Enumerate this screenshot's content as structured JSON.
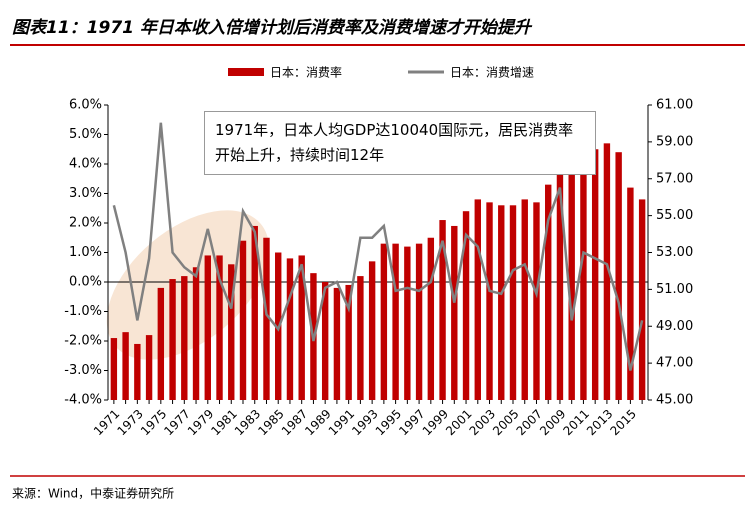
{
  "chart_data": {
    "type": "bar_line",
    "title": "图表11：1971 年日本收入倍增计划后消费率及消费增速才开始提升",
    "source": "来源：Wind，中泰证券研究所",
    "annotation": "1971年，日本人均GDP达10040国际元，居民消费率开始上升，持续时间12年",
    "categories": [
      "1971",
      null,
      "1973",
      null,
      "1975",
      null,
      "1977",
      null,
      "1979",
      null,
      "1981",
      null,
      "1983",
      null,
      "1985",
      null,
      "1987",
      null,
      "1989",
      null,
      "1991",
      null,
      "1993",
      null,
      "1995",
      null,
      "1997",
      null,
      "1999",
      null,
      "2001",
      null,
      "2003",
      null,
      "2005",
      null,
      "2007",
      null,
      "2009",
      null,
      "2011",
      null,
      "2013",
      null,
      "2015",
      null
    ],
    "series": [
      {
        "name": "日本：消费率",
        "color": "#c00000",
        "kind": "bar",
        "axis": "y2",
        "values": [
          48.36,
          48.68,
          48.04,
          48.52,
          51.08,
          51.56,
          51.72,
          52.2,
          52.84,
          52.84,
          52.36,
          53.64,
          54.44,
          53.8,
          53.0,
          52.68,
          52.84,
          51.88,
          51.4,
          51.08,
          51.24,
          51.72,
          52.52,
          53.48,
          53.48,
          53.32,
          53.48,
          53.8,
          54.76,
          54.44,
          55.24,
          55.88,
          55.72,
          55.56,
          55.56,
          55.88,
          55.72,
          56.68,
          58.44,
          57.8,
          58.28,
          58.6,
          58.92,
          58.44,
          56.52,
          55.88
        ]
      },
      {
        "name": "日本：消费增速",
        "color": "#808080",
        "kind": "line",
        "values": [
          2.6,
          1.0,
          -1.3,
          0.8,
          5.4,
          1.0,
          0.5,
          0.2,
          1.8,
          0.1,
          -0.9,
          2.4,
          1.7,
          -1.1,
          -1.6,
          -0.5,
          0.6,
          -2.0,
          -0.2,
          0.0,
          -0.9,
          1.5,
          1.5,
          1.9,
          -0.3,
          -0.2,
          -0.3,
          0.0,
          1.4,
          -0.7,
          1.6,
          1.2,
          -0.3,
          -0.4,
          0.4,
          0.6,
          -0.4,
          2.1,
          3.2,
          -1.3,
          1.0,
          0.8,
          0.6,
          -0.7,
          -3.0,
          -1.3
        ]
      }
    ],
    "ylim": [
      -4,
      6
    ],
    "yticks": [
      {
        "value": -4,
        "label": "-4.0%"
      },
      {
        "value": -3,
        "label": "-3.0%"
      },
      {
        "value": -2,
        "label": "-2.0%"
      },
      {
        "value": -1,
        "label": "-1.0%"
      },
      {
        "value": 0,
        "label": "0.0%"
      },
      {
        "value": 1,
        "label": "1.0%"
      },
      {
        "value": 2,
        "label": "2.0%"
      },
      {
        "value": 3,
        "label": "3.0%"
      },
      {
        "value": 4,
        "label": "4.0%"
      },
      {
        "value": 5,
        "label": "5.0%"
      },
      {
        "value": 6,
        "label": "6.0%"
      }
    ],
    "y2lim": [
      45,
      61
    ],
    "y2ticks": [
      {
        "value": 45,
        "label": "45.00"
      },
      {
        "value": 47,
        "label": "47.00"
      },
      {
        "value": 49,
        "label": "49.00"
      },
      {
        "value": 51,
        "label": "51.00"
      },
      {
        "value": 53,
        "label": "53.00"
      },
      {
        "value": 55,
        "label": "55.00"
      },
      {
        "value": 57,
        "label": "57.00"
      },
      {
        "value": 59,
        "label": "59.00"
      },
      {
        "value": 61,
        "label": "61.00"
      }
    ]
  }
}
